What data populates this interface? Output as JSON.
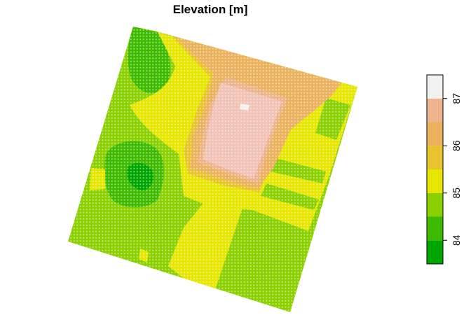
{
  "title": "Elevation [m]",
  "legend": {
    "orientation": "vertical",
    "placement": "right",
    "range": [
      83.5,
      87.5
    ],
    "breaks": [
      83.5,
      84.0,
      84.5,
      85.0,
      85.5,
      86.0,
      86.5,
      87.0,
      87.5
    ],
    "colors": [
      "#00A600",
      "#3EBB00",
      "#8BD000",
      "#E6E600",
      "#E8C32E",
      "#EBB25E",
      "#EDB48E",
      "#F2F2F2"
    ],
    "ticks": [
      {
        "value": 84,
        "label": "84"
      },
      {
        "value": 85,
        "label": "85"
      },
      {
        "value": 86,
        "label": "86"
      },
      {
        "value": 87,
        "label": "87"
      }
    ]
  },
  "map": {
    "type": "point grid",
    "units": "m",
    "point_color_scale": "terrain"
  }
}
